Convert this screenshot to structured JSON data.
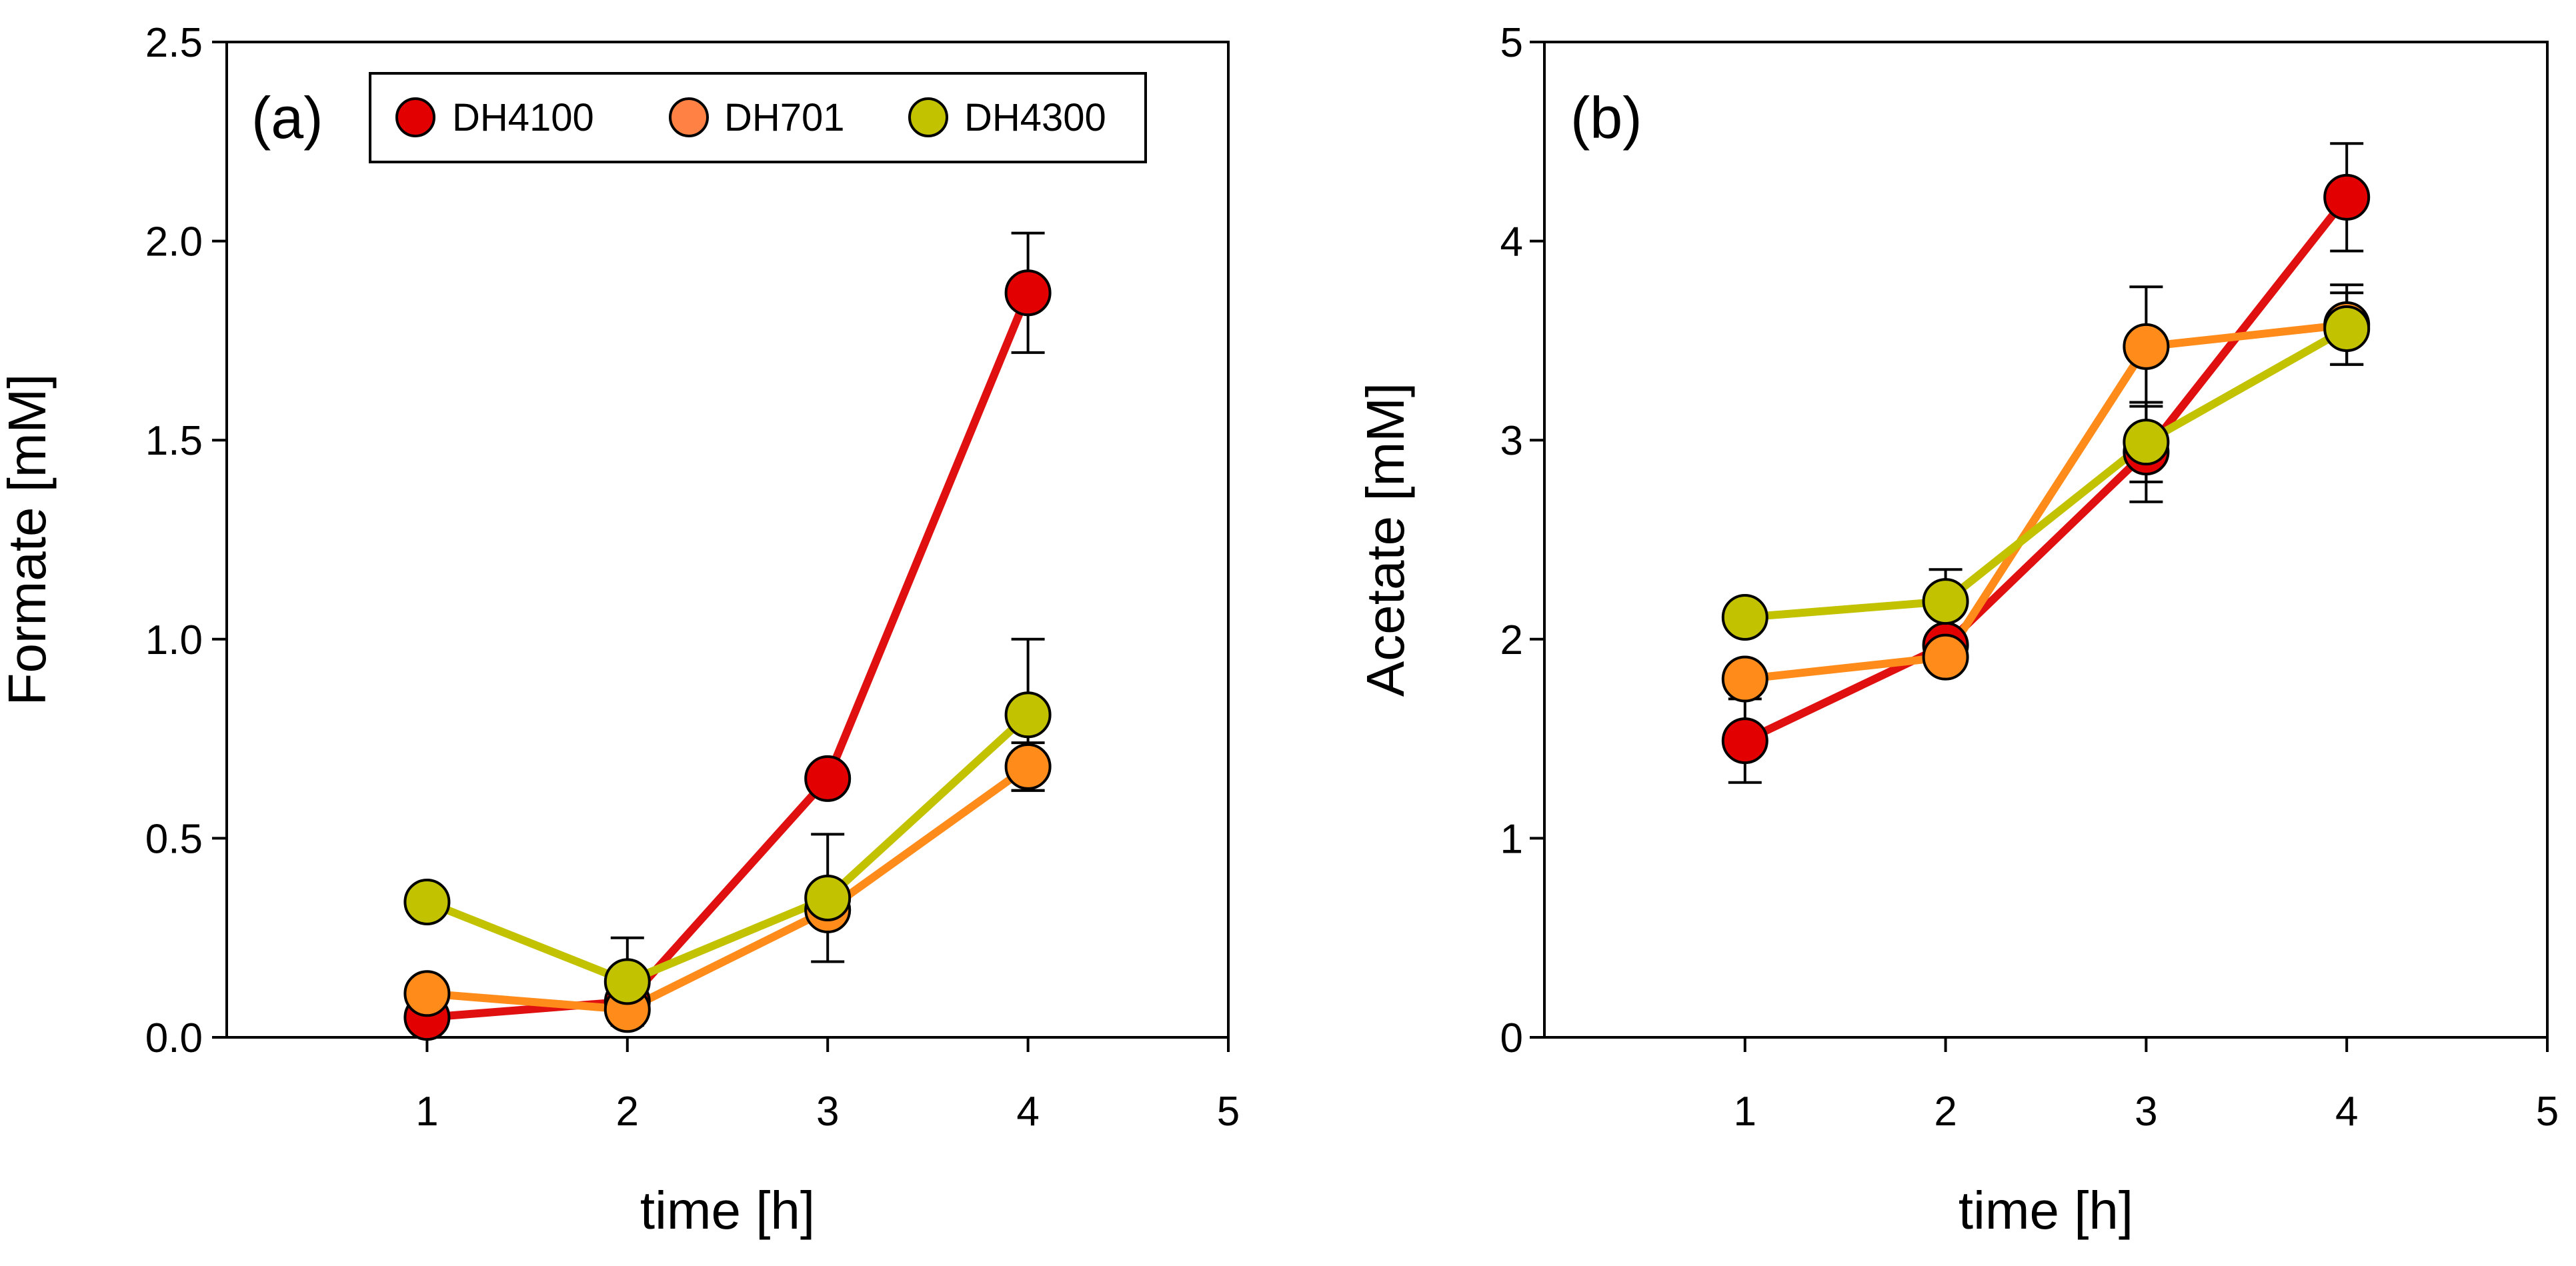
{
  "chart_data": [
    {
      "panel_label": "(a)",
      "type": "line",
      "xlabel": "time [h]",
      "ylabel": "Formate [mM]",
      "xlim": [
        0,
        5
      ],
      "ylim": [
        0,
        2.5
      ],
      "xticks": [
        "1",
        "2",
        "3",
        "4",
        "5"
      ],
      "yticks": [
        "0.0",
        "0.5",
        "1.0",
        "1.5",
        "2.0",
        "2.5"
      ],
      "grid": false,
      "legend": "top-center",
      "x": [
        1,
        2,
        3,
        4
      ],
      "series": [
        {
          "name": "DH4100",
          "values": [
            0.05,
            0.09,
            0.65,
            1.87
          ],
          "errors": [
            0.0,
            0.0,
            0.0,
            0.15
          ]
        },
        {
          "name": "DH701",
          "values": [
            0.11,
            0.07,
            0.32,
            0.68
          ],
          "errors": [
            0.0,
            0.0,
            0.0,
            0.06
          ]
        },
        {
          "name": "DH4300",
          "values": [
            0.34,
            0.14,
            0.35,
            0.81
          ],
          "errors": [
            0.0,
            0.11,
            0.16,
            0.19
          ]
        }
      ]
    },
    {
      "panel_label": "(b)",
      "type": "line",
      "xlabel": "time [h]",
      "ylabel": "Acetate [mM]",
      "xlim": [
        0,
        5
      ],
      "ylim": [
        0,
        5
      ],
      "xticks": [
        "1",
        "2",
        "3",
        "4",
        "5"
      ],
      "yticks": [
        "0",
        "1",
        "2",
        "3",
        "4",
        "5"
      ],
      "grid": false,
      "legend": "none",
      "x": [
        1,
        2,
        3,
        4
      ],
      "series": [
        {
          "name": "DH4100",
          "values": [
            1.49,
            1.97,
            2.94,
            4.22
          ],
          "errors": [
            0.21,
            0.0,
            0.25,
            0.27
          ]
        },
        {
          "name": "DH701",
          "values": [
            1.8,
            1.91,
            3.47,
            3.58
          ],
          "errors": [
            0.0,
            0.0,
            0.3,
            0.2
          ]
        },
        {
          "name": "DH4300",
          "values": [
            2.11,
            2.19,
            2.99,
            3.56
          ],
          "errors": [
            0.0,
            0.16,
            0.2,
            0.18
          ]
        }
      ]
    }
  ],
  "colors": {
    "DH4100_marker": "#e20000",
    "DH4100_line": "#e01010",
    "DH701_marker": "#ff8c1a",
    "DH701_line": "#ff8c1a",
    "DH701_legend_marker": "#ff8244",
    "DH4300_marker": "#c2c200",
    "DH4300_line": "#c2c200"
  }
}
